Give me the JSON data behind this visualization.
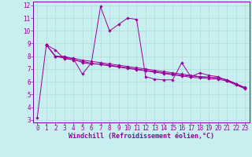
{
  "xlabel": "Windchill (Refroidissement éolien,°C)",
  "bg_color": "#c8eef0",
  "line_color": "#990099",
  "spine_color": "#7700aa",
  "xlim": [
    -0.5,
    23.5
  ],
  "ylim": [
    2.8,
    12.3
  ],
  "xtick_vals": [
    0,
    1,
    2,
    3,
    4,
    5,
    6,
    7,
    8,
    9,
    10,
    11,
    12,
    13,
    14,
    15,
    16,
    17,
    18,
    19,
    20,
    21,
    22,
    23
  ],
  "xtick_labels": [
    "0",
    "1",
    "2",
    "3",
    "4",
    "5",
    "6",
    "7",
    "8",
    "9",
    "10",
    "11",
    "12",
    "13",
    "14",
    "15",
    "16",
    "17",
    "18",
    "19",
    "20",
    "21",
    "22",
    "23"
  ],
  "ytick_vals": [
    3,
    4,
    5,
    6,
    7,
    8,
    9,
    10,
    11,
    12
  ],
  "ytick_labels": [
    "3",
    "4",
    "5",
    "6",
    "7",
    "8",
    "9",
    "10",
    "11",
    "12"
  ],
  "grid_color": "#aadddd",
  "font_size": 5.5,
  "xlabel_font_size": 6,
  "marker": "D",
  "marker_size": 1.8,
  "lw": 0.7,
  "series1": [
    [
      0,
      3.2
    ],
    [
      1,
      8.9
    ],
    [
      2,
      8.0
    ],
    [
      3,
      8.0
    ],
    [
      4,
      7.8
    ],
    [
      5,
      6.6
    ],
    [
      6,
      7.5
    ],
    [
      7,
      11.9
    ],
    [
      8,
      10.0
    ],
    [
      9,
      10.5
    ],
    [
      10,
      11.0
    ],
    [
      11,
      10.9
    ],
    [
      12,
      6.4
    ],
    [
      13,
      6.2
    ],
    [
      14,
      6.15
    ],
    [
      15,
      6.15
    ],
    [
      16,
      7.5
    ],
    [
      17,
      6.4
    ],
    [
      18,
      6.7
    ],
    [
      19,
      6.5
    ],
    [
      20,
      6.4
    ],
    [
      21,
      6.1
    ],
    [
      22,
      5.8
    ],
    [
      23,
      5.5
    ]
  ],
  "series2": [
    [
      1,
      8.9
    ],
    [
      2,
      8.5
    ],
    [
      3,
      7.8
    ],
    [
      4,
      7.8
    ],
    [
      5,
      7.5
    ],
    [
      6,
      7.4
    ],
    [
      7,
      7.4
    ],
    [
      8,
      7.3
    ],
    [
      9,
      7.2
    ],
    [
      10,
      7.1
    ],
    [
      11,
      7.0
    ],
    [
      12,
      6.9
    ],
    [
      13,
      6.8
    ],
    [
      14,
      6.7
    ],
    [
      15,
      6.6
    ],
    [
      16,
      6.5
    ],
    [
      17,
      6.45
    ],
    [
      18,
      6.4
    ],
    [
      19,
      6.35
    ],
    [
      20,
      6.3
    ],
    [
      21,
      6.15
    ],
    [
      22,
      5.85
    ],
    [
      23,
      5.5
    ]
  ],
  "series3": [
    [
      1,
      8.9
    ],
    [
      2,
      8.0
    ],
    [
      3,
      7.85
    ],
    [
      4,
      7.7
    ],
    [
      5,
      7.6
    ],
    [
      6,
      7.45
    ],
    [
      7,
      7.35
    ],
    [
      8,
      7.25
    ],
    [
      9,
      7.15
    ],
    [
      10,
      7.05
    ],
    [
      11,
      6.95
    ],
    [
      12,
      6.85
    ],
    [
      13,
      6.75
    ],
    [
      14,
      6.65
    ],
    [
      15,
      6.55
    ],
    [
      16,
      6.45
    ],
    [
      17,
      6.35
    ],
    [
      18,
      6.3
    ],
    [
      19,
      6.25
    ],
    [
      20,
      6.2
    ],
    [
      21,
      6.05
    ],
    [
      22,
      5.75
    ],
    [
      23,
      5.45
    ]
  ],
  "series4": [
    [
      1,
      8.9
    ],
    [
      2,
      8.0
    ],
    [
      3,
      7.9
    ],
    [
      4,
      7.85
    ],
    [
      5,
      7.7
    ],
    [
      6,
      7.6
    ],
    [
      7,
      7.5
    ],
    [
      8,
      7.4
    ],
    [
      9,
      7.3
    ],
    [
      10,
      7.2
    ],
    [
      11,
      7.1
    ],
    [
      12,
      7.0
    ],
    [
      13,
      6.9
    ],
    [
      14,
      6.8
    ],
    [
      15,
      6.7
    ],
    [
      16,
      6.6
    ],
    [
      17,
      6.5
    ],
    [
      18,
      6.4
    ],
    [
      19,
      6.35
    ],
    [
      20,
      6.3
    ],
    [
      21,
      6.15
    ],
    [
      22,
      5.85
    ],
    [
      23,
      5.55
    ]
  ]
}
